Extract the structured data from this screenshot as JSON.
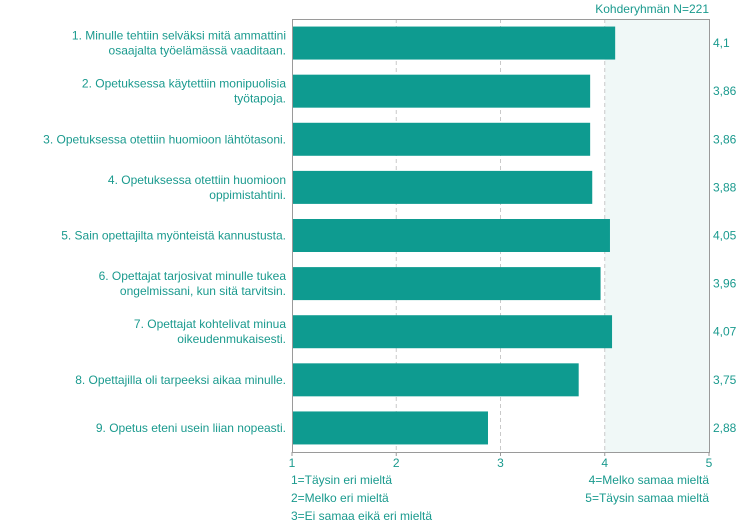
{
  "chart_data": {
    "type": "bar",
    "orientation": "horizontal",
    "subtitle": "Kohderyhmän N=221",
    "categories": [
      [
        "1. Minulle tehtiin selväksi mitä ammattini",
        "osaajalta työelämässä vaaditaan."
      ],
      [
        "2. Opetuksessa käytettiin monipuolisia",
        "työtapoja."
      ],
      [
        "3. Opetuksessa otettiin huomioon lähtötasoni."
      ],
      [
        "4. Opetuksessa otettiin huomioon",
        "oppimistahtini."
      ],
      [
        "5. Sain opettajilta myönteistä kannustusta."
      ],
      [
        "6. Opettajat tarjosivat minulle tukea",
        "ongelmissani, kun sitä tarvitsin."
      ],
      [
        "7. Opettajat kohtelivat minua",
        "oikeudenmukaisesti."
      ],
      [
        "8. Opettajilla oli tarpeeksi aikaa minulle."
      ],
      [
        "9. Opetus eteni usein liian nopeasti."
      ]
    ],
    "values": [
      4.1,
      3.86,
      3.86,
      3.88,
      4.05,
      3.96,
      4.07,
      3.75,
      2.88
    ],
    "value_labels": [
      "4,1",
      "3,86",
      "3,86",
      "3,88",
      "4,05",
      "3,96",
      "4,07",
      "3,75",
      "2,88"
    ],
    "xlim": [
      1,
      5
    ],
    "xticks": [
      1,
      2,
      3,
      4,
      5
    ],
    "grid": true,
    "highlight_range": [
      4,
      5
    ],
    "legend": [
      "1=Täysin eri mieltä",
      "2=Melko eri mieltä",
      "3=Ei samaa eikä eri mieltä",
      "4=Melko samaa mieltä",
      "5=Täysin samaa mieltä"
    ],
    "colors": {
      "bar": "#0e9b90",
      "text": "#1a9a8e",
      "axis": "#9a9a9a",
      "grid": "#c9c9c9",
      "highlight": "#f0f8f7"
    }
  }
}
